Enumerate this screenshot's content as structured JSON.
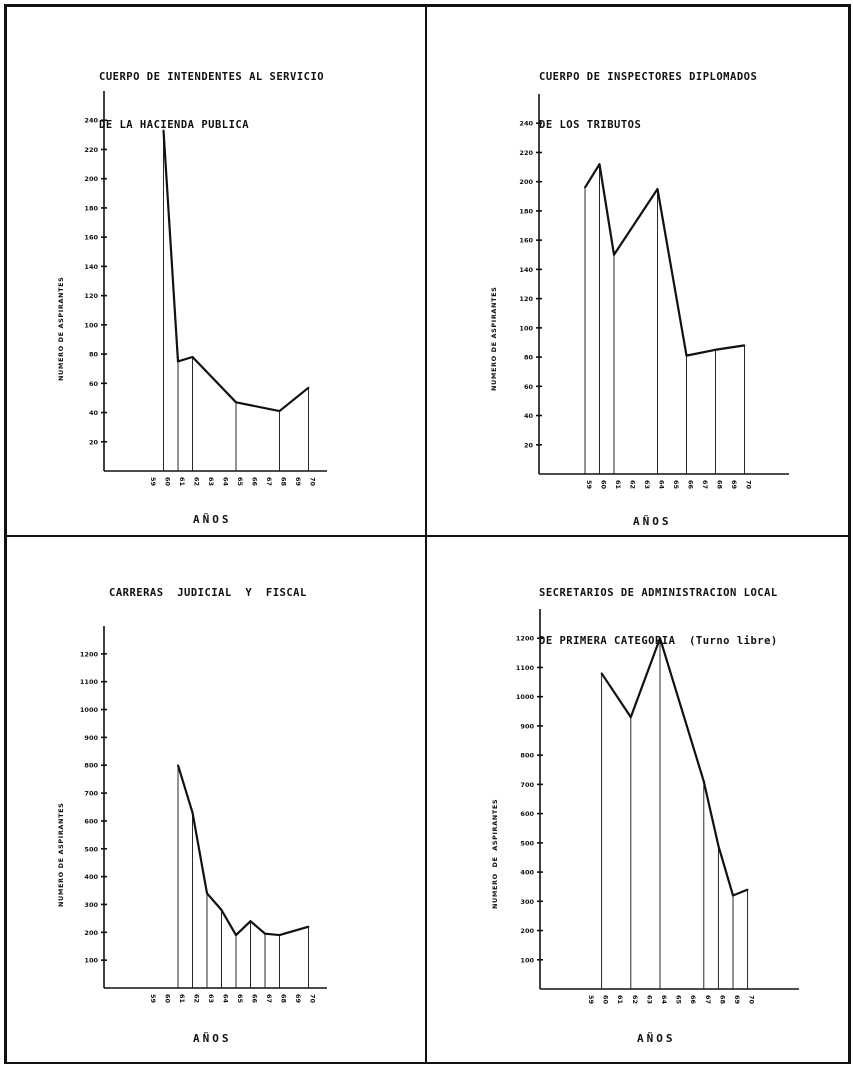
{
  "chart_data": [
    {
      "type": "line",
      "title_lines": [
        "CUERPO DE INTENDENTES AL SERVICIO",
        "DE LA HACIENDA PUBLICA"
      ],
      "xlabel": "AÑOS",
      "ylabel": "NUMERO DE ASPIRANTES",
      "x_categories": [
        "59",
        "60",
        "61",
        "62",
        "63",
        "64",
        "65",
        "66",
        "67",
        "68",
        "69",
        "70"
      ],
      "y_ticks": [
        20,
        40,
        60,
        80,
        100,
        120,
        140,
        160,
        180,
        200,
        220,
        240
      ],
      "y_tick_labels": [
        "20",
        "40",
        "60",
        "80",
        "100",
        "120",
        "140",
        "160",
        "180",
        "200",
        "220",
        "240"
      ],
      "ylim": [
        0,
        260
      ],
      "points": [
        [
          "60",
          233
        ],
        [
          "61",
          75
        ],
        [
          "62",
          78
        ],
        [
          "65",
          47
        ],
        [
          "68",
          41
        ],
        [
          "70",
          57
        ]
      ],
      "series": [
        {
          "values": [
            null,
            233,
            75,
            78,
            null,
            null,
            47,
            null,
            null,
            41,
            null,
            57
          ]
        }
      ]
    },
    {
      "type": "line",
      "title_lines": [
        "CUERPO DE INSPECTORES DIPLOMADOS",
        "DE LOS TRIBUTOS"
      ],
      "xlabel": "AÑOS",
      "ylabel": "NUMERO DE ASPIRANTES",
      "x_categories": [
        "59",
        "60",
        "61",
        "62",
        "63",
        "64",
        "65",
        "66",
        "67",
        "68",
        "69",
        "70"
      ],
      "y_ticks": [
        20,
        40,
        60,
        80,
        100,
        120,
        140,
        160,
        180,
        200,
        220,
        240
      ],
      "y_tick_labels": [
        "20",
        "40",
        "60",
        "80",
        "100",
        "120",
        "140",
        "160",
        "180",
        "200",
        "220",
        "240"
      ],
      "ylim": [
        0,
        260
      ],
      "points": [
        [
          "59",
          196
        ],
        [
          "60",
          212
        ],
        [
          "61",
          150
        ],
        [
          "64",
          195
        ],
        [
          "66",
          81
        ],
        [
          "68",
          85
        ],
        [
          "70",
          88
        ]
      ],
      "series": [
        {
          "values": [
            196,
            212,
            150,
            null,
            null,
            195,
            null,
            81,
            null,
            85,
            null,
            88
          ]
        }
      ]
    },
    {
      "type": "line",
      "title_lines": [
        "CARRERAS  JUDICIAL  Y  FISCAL"
      ],
      "xlabel": "AÑOS",
      "ylabel": "NUMERO DE ASPIRANTES",
      "x_categories": [
        "59",
        "60",
        "61",
        "62",
        "63",
        "64",
        "65",
        "66",
        "67",
        "68",
        "69",
        "70"
      ],
      "y_ticks": [
        100,
        200,
        300,
        400,
        500,
        600,
        700,
        800,
        900,
        1000,
        1100,
        1200
      ],
      "y_tick_labels": [
        "100",
        "200",
        "300",
        "400",
        "500",
        "600",
        "700",
        "800",
        "900",
        "1000",
        "1100",
        "1200"
      ],
      "ylim": [
        0,
        1300
      ],
      "points": [
        [
          "61",
          800
        ],
        [
          "62",
          630
        ],
        [
          "63",
          340
        ],
        [
          "64",
          280
        ],
        [
          "65",
          190
        ],
        [
          "66",
          240
        ],
        [
          "67",
          195
        ],
        [
          "68",
          190
        ],
        [
          "70",
          220
        ]
      ],
      "series": [
        {
          "values": [
            null,
            null,
            800,
            630,
            340,
            280,
            190,
            240,
            195,
            190,
            null,
            220
          ]
        }
      ]
    },
    {
      "type": "line",
      "title_lines": [
        "SECRETARIOS DE ADMINISTRACION LOCAL",
        "DE PRIMERA CATEGORIA  (Turno libre)"
      ],
      "xlabel": "AÑOS",
      "ylabel": "NUMERO  DE  ASPIRANTES",
      "x_categories": [
        "59",
        "60",
        "61",
        "62",
        "63",
        "64",
        "65",
        "66",
        "67",
        "68",
        "69",
        "70"
      ],
      "y_ticks": [
        100,
        200,
        300,
        400,
        500,
        600,
        700,
        800,
        900,
        1000,
        1100,
        1200
      ],
      "y_tick_labels": [
        "100",
        "200",
        "300",
        "400",
        "500",
        "600",
        "700",
        "800",
        "900",
        "1000",
        "1100",
        "1200"
      ],
      "ylim": [
        0,
        1300
      ],
      "points": [
        [
          "60",
          1080
        ],
        [
          "62",
          930
        ],
        [
          "64",
          1200
        ],
        [
          "67",
          710
        ],
        [
          "68",
          490
        ],
        [
          "69",
          320
        ],
        [
          "70",
          340
        ]
      ],
      "series": [
        {
          "values": [
            null,
            1080,
            null,
            930,
            null,
            1200,
            null,
            null,
            710,
            490,
            320,
            340
          ]
        }
      ]
    }
  ]
}
